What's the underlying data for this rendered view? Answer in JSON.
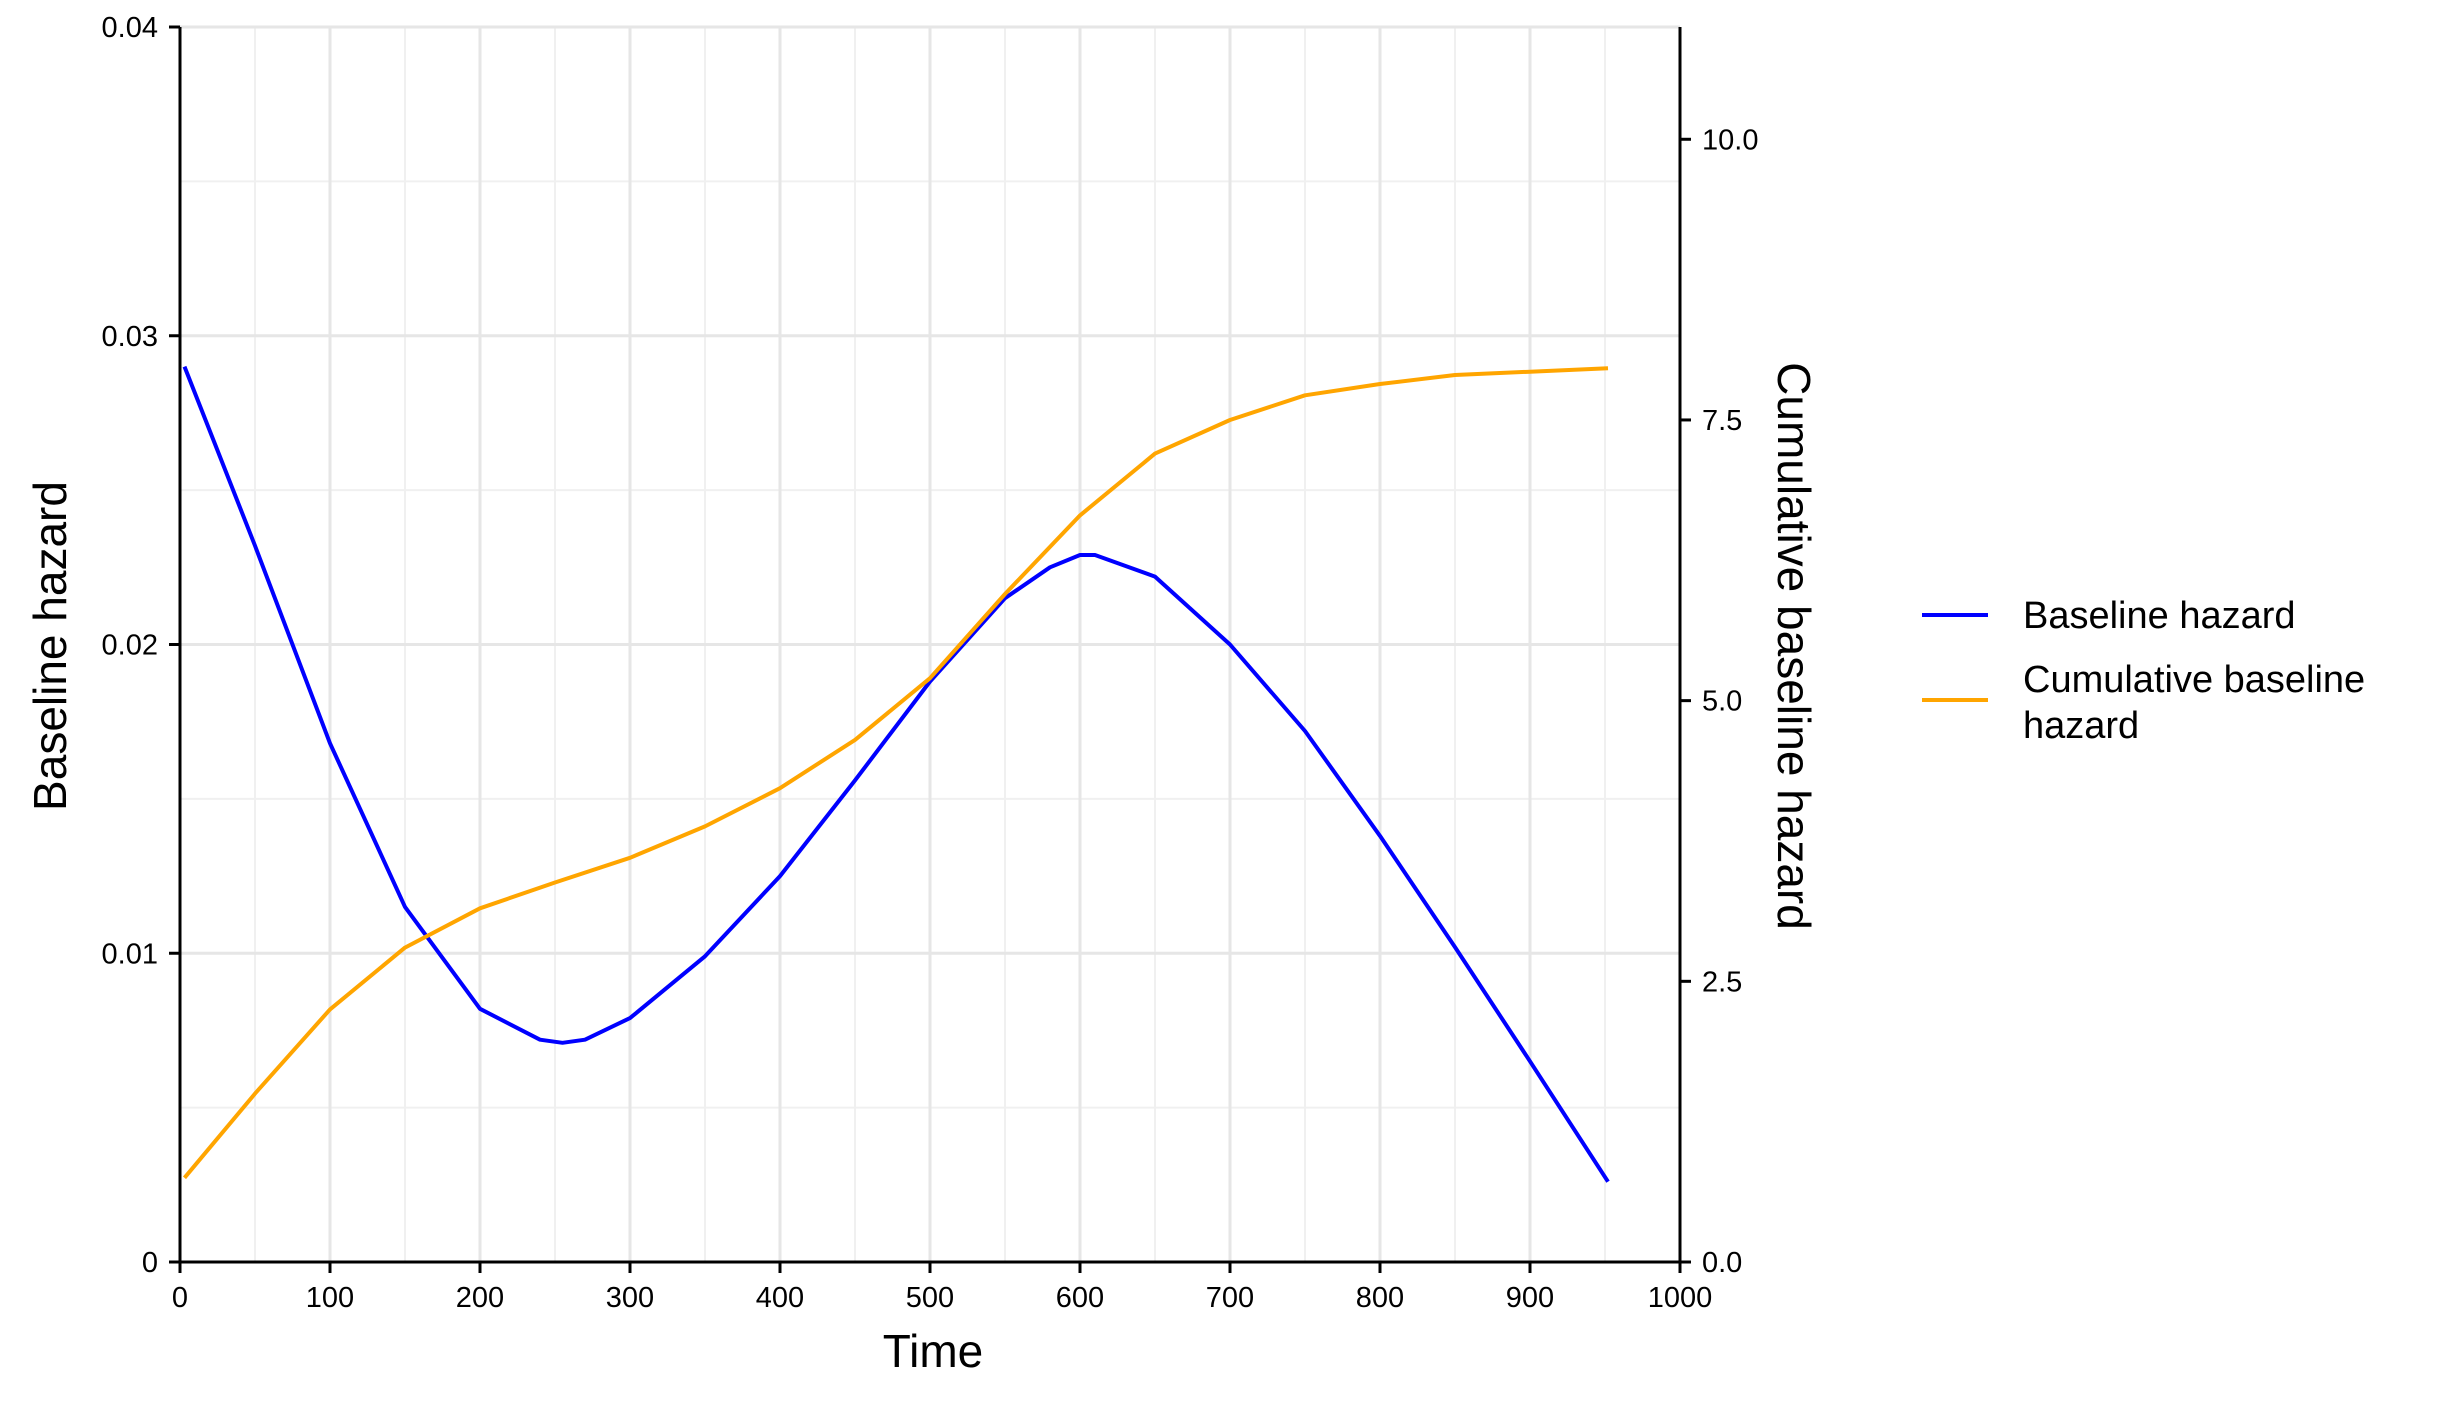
{
  "chart_data": {
    "type": "line",
    "title": "",
    "xlabel": "Time",
    "ylabel": "Baseline hazard",
    "y2label": "Cumulative baseline hazard",
    "xlim": [
      0,
      1000
    ],
    "ylim": [
      0,
      0.04
    ],
    "y2lim": [
      0,
      11
    ],
    "x_ticks": [
      0,
      100,
      200,
      300,
      400,
      500,
      600,
      700,
      800,
      900,
      1000
    ],
    "x_tick_labels": [
      "0",
      "100",
      "200",
      "300",
      "400",
      "500",
      "600",
      "700",
      "800",
      "900",
      "1000"
    ],
    "y_ticks": [
      0,
      0.01,
      0.02,
      0.03,
      0.04
    ],
    "y_tick_labels": [
      "0",
      "0.01",
      "0.02",
      "0.03",
      "0.04"
    ],
    "y2_ticks": [
      0,
      2.5,
      5,
      7.5,
      10
    ],
    "y2_tick_labels": [
      "0.0",
      "2.5",
      "5.0",
      "7.5",
      "10.0"
    ],
    "grid": true,
    "legend_position": "right",
    "series": [
      {
        "name": "Baseline hazard",
        "axis": "left",
        "color": "#0000ff",
        "x": [
          3,
          50,
          100,
          150,
          200,
          240,
          255,
          270,
          300,
          350,
          400,
          450,
          500,
          550,
          580,
          600,
          610,
          650,
          700,
          750,
          800,
          850,
          900,
          952
        ],
        "y": [
          0.029,
          0.0232,
          0.0168,
          0.0115,
          0.0082,
          0.0072,
          0.0071,
          0.0072,
          0.0079,
          0.0099,
          0.0125,
          0.0156,
          0.0188,
          0.0215,
          0.0225,
          0.0229,
          0.0229,
          0.0222,
          0.02,
          0.0172,
          0.0138,
          0.0102,
          0.0065,
          0.0026
        ]
      },
      {
        "name": "Cumulative baseline hazard",
        "axis": "right",
        "color": "#ffa500",
        "x": [
          3,
          50,
          100,
          150,
          200,
          250,
          300,
          350,
          400,
          450,
          500,
          550,
          600,
          650,
          700,
          750,
          800,
          850,
          900,
          952
        ],
        "y": [
          0.75,
          1.5,
          2.25,
          2.8,
          3.15,
          3.38,
          3.6,
          3.88,
          4.22,
          4.65,
          5.2,
          5.95,
          6.65,
          7.2,
          7.5,
          7.72,
          7.82,
          7.9,
          7.93,
          7.96
        ]
      }
    ]
  }
}
